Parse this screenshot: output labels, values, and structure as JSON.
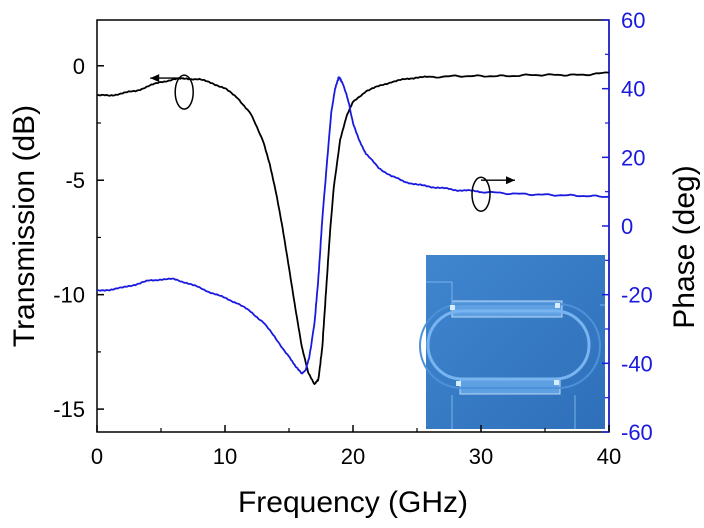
{
  "chart_data": {
    "type": "line",
    "xlabel": "Frequency (GHz)",
    "ylabel_left": "Transmission (dB)",
    "ylabel_right": "Phase (deg)",
    "xlim": [
      0,
      40
    ],
    "ylim_left": [
      -16,
      2
    ],
    "ylim_right": [
      -60,
      60
    ],
    "xticks": [
      0,
      10,
      20,
      30,
      40
    ],
    "yticks_left": [
      -15,
      -10,
      -5,
      0
    ],
    "yticks_right": [
      -60,
      -40,
      -20,
      0,
      20,
      40,
      60
    ],
    "grid": false,
    "inset": "microscope image of a racetrack microring resonator (top-right of image area: bottom-right)",
    "series": [
      {
        "axis": "left",
        "color": "#000000",
        "x": [
          0,
          1,
          2,
          3,
          4,
          5,
          6,
          7,
          8,
          9,
          10,
          11,
          12,
          13,
          13.5,
          14,
          14.5,
          15,
          15.5,
          16,
          16.5,
          17,
          17.3,
          17.6,
          17.9,
          18.2,
          18.5,
          19,
          19.5,
          20,
          21,
          22,
          23,
          24,
          25,
          26,
          28,
          30,
          32,
          34,
          36,
          38,
          40
        ],
        "values": [
          -1.3,
          -1.3,
          -1.2,
          -1.1,
          -0.9,
          -0.7,
          -0.6,
          -0.55,
          -0.6,
          -0.75,
          -1.0,
          -1.4,
          -2.1,
          -3.3,
          -4.3,
          -5.6,
          -7.1,
          -8.8,
          -10.6,
          -12.3,
          -13.4,
          -13.9,
          -13.7,
          -12.3,
          -9.8,
          -7.3,
          -5.3,
          -3.2,
          -2.2,
          -1.6,
          -1.1,
          -0.9,
          -0.7,
          -0.6,
          -0.5,
          -0.5,
          -0.45,
          -0.45,
          -0.45,
          -0.4,
          -0.4,
          -0.4,
          -0.3
        ]
      },
      {
        "axis": "right",
        "color": "#1a1adf",
        "x": [
          0,
          1,
          2,
          3,
          4,
          5,
          6,
          7,
          8,
          9,
          10,
          11,
          12,
          13,
          14,
          15,
          15.5,
          16,
          16.3,
          16.6,
          17,
          17.3,
          17.6,
          18,
          18.3,
          18.6,
          18.9,
          19.2,
          19.6,
          20,
          20.5,
          21,
          22,
          23,
          24,
          25,
          26,
          27,
          28,
          29,
          30,
          32,
          34,
          36,
          38,
          40
        ],
        "values": [
          -19,
          -18.5,
          -18,
          -17,
          -16,
          -15.5,
          -15.5,
          -16.5,
          -18,
          -19.5,
          -21,
          -22.5,
          -25,
          -28,
          -33,
          -38,
          -41,
          -43,
          -42,
          -38,
          -28,
          -15,
          2,
          20,
          33,
          40,
          43.5,
          41.5,
          37,
          30,
          25,
          21,
          17,
          14.5,
          13,
          12,
          11.5,
          11,
          10.5,
          10.3,
          10,
          9.5,
          9.2,
          9,
          8.8,
          8.5
        ]
      }
    ],
    "annotations": [
      {
        "type": "ellipse-arrow",
        "x": 6.5,
        "value": -0.8,
        "axis": "left",
        "arrow_direction": "left"
      },
      {
        "type": "ellipse-arrow",
        "x": 30,
        "value": 11,
        "axis": "right",
        "arrow_direction": "right"
      }
    ]
  },
  "colors": {
    "left_axis": "#000000",
    "right_axis": "#1a1adf",
    "inset_background": "#3a7fc8"
  }
}
